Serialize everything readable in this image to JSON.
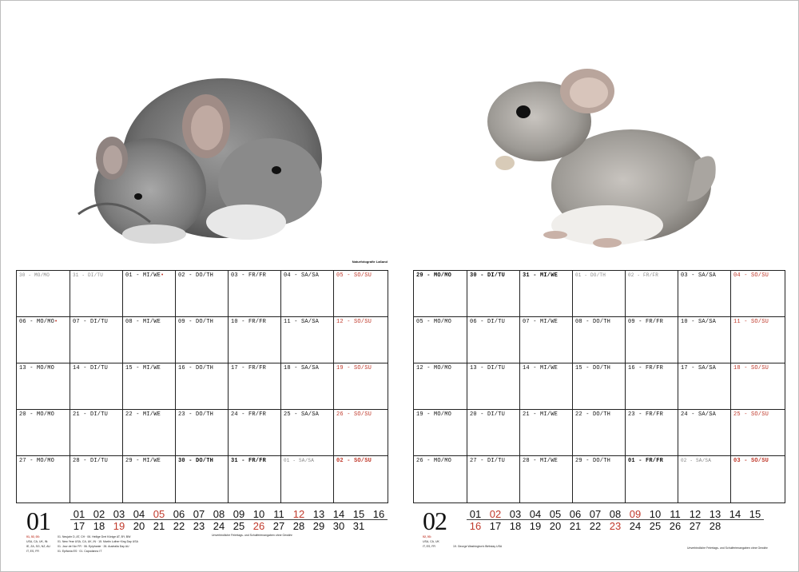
{
  "photo_credit": "Naturfotografie Laßand",
  "january": {
    "number": "01",
    "rows": [
      [
        {
          "t": "30 - MO/MO",
          "s": "muted"
        },
        {
          "t": "31 - DI/TU",
          "s": "muted"
        },
        {
          "t": "01 - MI/WE",
          "s": "hol"
        },
        {
          "t": "02 - DO/TH",
          "s": ""
        },
        {
          "t": "03 - FR/FR",
          "s": ""
        },
        {
          "t": "04 - SA/SA",
          "s": ""
        },
        {
          "t": "05 - SO/SU",
          "s": "sun"
        }
      ],
      [
        {
          "t": "06 - MO/MO",
          "s": "hol"
        },
        {
          "t": "07 - DI/TU",
          "s": ""
        },
        {
          "t": "08 - MI/WE",
          "s": ""
        },
        {
          "t": "09 - DO/TH",
          "s": ""
        },
        {
          "t": "10 - FR/FR",
          "s": ""
        },
        {
          "t": "11 - SA/SA",
          "s": ""
        },
        {
          "t": "12 - SO/SU",
          "s": "sun"
        }
      ],
      [
        {
          "t": "13 - MO/MO",
          "s": ""
        },
        {
          "t": "14 - DI/TU",
          "s": ""
        },
        {
          "t": "15 - MI/WE",
          "s": ""
        },
        {
          "t": "16 - DO/TH",
          "s": ""
        },
        {
          "t": "17 - FR/FR",
          "s": ""
        },
        {
          "t": "18 - SA/SA",
          "s": ""
        },
        {
          "t": "19 - SO/SU",
          "s": "sun"
        }
      ],
      [
        {
          "t": "20 - MO/MO",
          "s": ""
        },
        {
          "t": "21 - DI/TU",
          "s": ""
        },
        {
          "t": "22 - MI/WE",
          "s": ""
        },
        {
          "t": "23 - DO/TH",
          "s": ""
        },
        {
          "t": "24 - FR/FR",
          "s": ""
        },
        {
          "t": "25 - SA/SA",
          "s": ""
        },
        {
          "t": "26 - SO/SU",
          "s": "sun"
        }
      ],
      [
        {
          "t": "27 - MO/MO",
          "s": ""
        },
        {
          "t": "28 - DI/TU",
          "s": ""
        },
        {
          "t": "29 - MI/WE",
          "s": ""
        },
        {
          "t": "30 - DO/TH",
          "s": "bold"
        },
        {
          "t": "31 - FR/FR",
          "s": "bold"
        },
        {
          "t": "01 - SA/SA",
          "s": "muted"
        },
        {
          "t": "02 - SO/SU",
          "s": "sunbold"
        }
      ]
    ],
    "strip_top": [
      "01",
      "02",
      "03",
      "04",
      "05",
      "06",
      "07",
      "08",
      "09",
      "10",
      "11",
      "12",
      "13",
      "14",
      "15",
      "16"
    ],
    "strip_top_red": [
      "05",
      "12"
    ],
    "strip_bottom": [
      "17",
      "18",
      "19",
      "20",
      "21",
      "22",
      "23",
      "24",
      "25",
      "26",
      "27",
      "28",
      "29",
      "30",
      "31"
    ],
    "strip_bottom_red": [
      "19",
      "26"
    ]
  },
  "february": {
    "number": "02",
    "rows": [
      [
        {
          "t": "29 - MO/MO",
          "s": "bold"
        },
        {
          "t": "30 - DI/TU",
          "s": "bold"
        },
        {
          "t": "31 - MI/WE",
          "s": "bold"
        },
        {
          "t": "01 - DO/TH",
          "s": "muted"
        },
        {
          "t": "02 - FR/FR",
          "s": "muted"
        },
        {
          "t": "03 - SA/SA",
          "s": ""
        },
        {
          "t": "04 - SO/SU",
          "s": "sun"
        }
      ],
      [
        {
          "t": "05 - MO/MO",
          "s": ""
        },
        {
          "t": "06 - DI/TU",
          "s": ""
        },
        {
          "t": "07 - MI/WE",
          "s": ""
        },
        {
          "t": "08 - DO/TH",
          "s": ""
        },
        {
          "t": "09 - FR/FR",
          "s": ""
        },
        {
          "t": "10 - SA/SA",
          "s": ""
        },
        {
          "t": "11 - SO/SU",
          "s": "sun"
        }
      ],
      [
        {
          "t": "12 - MO/MO",
          "s": ""
        },
        {
          "t": "13 - DI/TU",
          "s": ""
        },
        {
          "t": "14 - MI/WE",
          "s": ""
        },
        {
          "t": "15 - DO/TH",
          "s": ""
        },
        {
          "t": "16 - FR/FR",
          "s": ""
        },
        {
          "t": "17 - SA/SA",
          "s": ""
        },
        {
          "t": "18 - SO/SU",
          "s": "sun"
        }
      ],
      [
        {
          "t": "19 - MO/MO",
          "s": ""
        },
        {
          "t": "20 - DI/TU",
          "s": ""
        },
        {
          "t": "21 - MI/WE",
          "s": ""
        },
        {
          "t": "22 - DO/TH",
          "s": ""
        },
        {
          "t": "23 - FR/FR",
          "s": ""
        },
        {
          "t": "24 - SA/SA",
          "s": ""
        },
        {
          "t": "25 - SO/SU",
          "s": "sun"
        }
      ],
      [
        {
          "t": "26 - MO/MO",
          "s": ""
        },
        {
          "t": "27 - DI/TU",
          "s": ""
        },
        {
          "t": "28 - MI/WE",
          "s": ""
        },
        {
          "t": "29 - DO/TH",
          "s": ""
        },
        {
          "t": "01 - FR/FR",
          "s": "bold"
        },
        {
          "t": "02 - SA/SA",
          "s": "muted"
        },
        {
          "t": "03 - SO/SU",
          "s": "sunbold"
        }
      ]
    ],
    "strip_top": [
      "01",
      "02",
      "03",
      "04",
      "05",
      "06",
      "07",
      "08",
      "09",
      "10",
      "11",
      "12",
      "13",
      "14",
      "15"
    ],
    "strip_top_red": [
      "02",
      "09"
    ],
    "strip_bottom": [
      "16",
      "17",
      "18",
      "19",
      "20",
      "21",
      "22",
      "23",
      "24",
      "25",
      "26",
      "27",
      "28"
    ],
    "strip_bottom_red": [
      "16",
      "23"
    ]
  },
  "footnotes": {
    "jan_red": "01, 02, 03:",
    "jan_lines": [
      "USA, CA, UK, IN:",
      "IE, ZA, SG, NZ, AU",
      "IT, ES, FR"
    ],
    "jan_notes": [
      "01. Neujahr D, AT, CH · 06. Heilige Drei Könige AT, BY, BW",
      "01. New Year USA, CA, UK, IN · 15. Martin Luther King Day USA",
      "01. Jour de l'An FR · 06. Epiphanie · 26. Australia Day AU",
      "01. Epifanía ES · 01. Capodanno IT"
    ],
    "jan_notes2": [
      "Unverbindliche Feiertags- und Schulferienangaben ohne Gewähr"
    ],
    "feb_red": "02, 03:",
    "feb_lines": [
      "USA, CA, UK",
      "IT, ES, FR"
    ],
    "feb_notes": [
      "19. George Washington's Birthday USA"
    ],
    "feb_notes2": [
      "Unverbindliche Feiertags- und Schulferienangaben ohne Gewähr"
    ]
  },
  "colors": {
    "accent_red": "#c0392b",
    "grid": "#222222"
  },
  "icons": {
    "photo_left": "two-chinchillas-photo",
    "photo_right": "chinchilla-eating-photo"
  }
}
